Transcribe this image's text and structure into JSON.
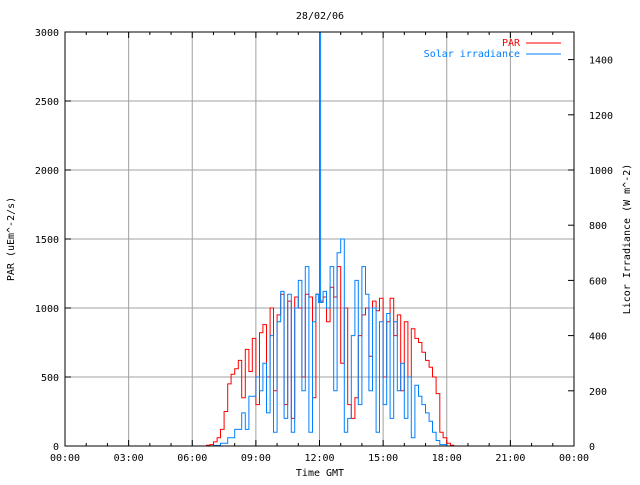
{
  "chart_data": {
    "type": "line",
    "title": "28/02/06",
    "xlabel": "Time GMT",
    "ylabel": "PAR (uEm^-2/s)",
    "y2label": "Licor Irradiance (W m^-2)",
    "xlim": [
      0,
      24
    ],
    "ylim": [
      0,
      3000
    ],
    "y2lim": [
      0,
      1500
    ],
    "grid": true,
    "legend_position": "top-right",
    "x_ticks": [
      {
        "value": 0,
        "label": "00:00"
      },
      {
        "value": 3,
        "label": "03:00"
      },
      {
        "value": 6,
        "label": "06:00"
      },
      {
        "value": 9,
        "label": "09:00"
      },
      {
        "value": 12,
        "label": "12:00"
      },
      {
        "value": 15,
        "label": "15:00"
      },
      {
        "value": 18,
        "label": "18:00"
      },
      {
        "value": 21,
        "label": "21:00"
      },
      {
        "value": 24,
        "label": "00:00"
      }
    ],
    "y_ticks": [
      "0",
      "500",
      "1000",
      "1500",
      "2000",
      "2500",
      "3000"
    ],
    "y2_ticks": [
      "0",
      "200",
      "400",
      "600",
      "800",
      "1000",
      "1200",
      "1400"
    ],
    "series": [
      {
        "name": "PAR",
        "axis": "left",
        "color": "#ff0000",
        "x": [
          0,
          6.5,
          6.67,
          6.83,
          7.0,
          7.17,
          7.33,
          7.5,
          7.67,
          7.83,
          8.0,
          8.17,
          8.33,
          8.5,
          8.67,
          8.83,
          9.0,
          9.17,
          9.33,
          9.5,
          9.67,
          9.83,
          10.0,
          10.17,
          10.33,
          10.5,
          10.67,
          10.83,
          11.0,
          11.17,
          11.33,
          11.5,
          11.67,
          11.83,
          12.0,
          12.17,
          12.33,
          12.5,
          12.67,
          12.83,
          13.0,
          13.17,
          13.33,
          13.5,
          13.67,
          13.83,
          14.0,
          14.17,
          14.33,
          14.5,
          14.67,
          14.83,
          15.0,
          15.17,
          15.33,
          15.5,
          15.67,
          15.83,
          16.0,
          16.17,
          16.33,
          16.5,
          16.67,
          16.83,
          17.0,
          17.17,
          17.33,
          17.5,
          17.67,
          17.83,
          18.0,
          18.17,
          18.33,
          24
        ],
        "y": [
          0,
          0,
          5,
          10,
          30,
          60,
          120,
          250,
          450,
          520,
          560,
          620,
          350,
          700,
          540,
          780,
          300,
          820,
          880,
          500,
          1000,
          400,
          950,
          1100,
          300,
          1050,
          200,
          1080,
          1000,
          500,
          1100,
          1080,
          350,
          1100,
          1050,
          1080,
          900,
          1150,
          1080,
          1300,
          600,
          1000,
          300,
          200,
          350,
          800,
          950,
          1000,
          650,
          1050,
          980,
          1070,
          500,
          900,
          1070,
          800,
          950,
          400,
          900,
          500,
          850,
          780,
          750,
          680,
          620,
          570,
          500,
          380,
          100,
          60,
          20,
          5,
          0,
          0
        ]
      },
      {
        "name": "Solar irradiance",
        "axis": "right",
        "color": "#0080ff",
        "x": [
          0,
          6.5,
          7.0,
          7.33,
          7.67,
          8.0,
          8.33,
          8.5,
          8.67,
          9.0,
          9.17,
          9.33,
          9.5,
          9.67,
          9.83,
          10.0,
          10.17,
          10.33,
          10.5,
          10.67,
          10.83,
          11.0,
          11.17,
          11.33,
          11.5,
          11.67,
          11.83,
          11.95,
          12.0,
          12.05,
          12.17,
          12.33,
          12.5,
          12.67,
          12.83,
          13.0,
          13.17,
          13.33,
          13.5,
          13.67,
          13.83,
          14.0,
          14.17,
          14.33,
          14.5,
          14.67,
          14.83,
          15.0,
          15.17,
          15.33,
          15.5,
          15.67,
          15.83,
          16.0,
          16.17,
          16.33,
          16.5,
          16.67,
          16.83,
          17.0,
          17.17,
          17.33,
          17.5,
          17.67,
          18.0,
          24
        ],
        "y": [
          0,
          0,
          2,
          10,
          30,
          60,
          120,
          60,
          180,
          250,
          200,
          300,
          120,
          400,
          50,
          450,
          560,
          100,
          550,
          50,
          500,
          600,
          200,
          650,
          50,
          450,
          550,
          520,
          1500,
          520,
          560,
          500,
          650,
          200,
          700,
          750,
          50,
          100,
          400,
          600,
          150,
          650,
          550,
          200,
          500,
          50,
          450,
          150,
          480,
          100,
          450,
          200,
          300,
          100,
          250,
          30,
          220,
          180,
          150,
          120,
          90,
          50,
          20,
          5,
          0,
          0
        ]
      }
    ]
  }
}
